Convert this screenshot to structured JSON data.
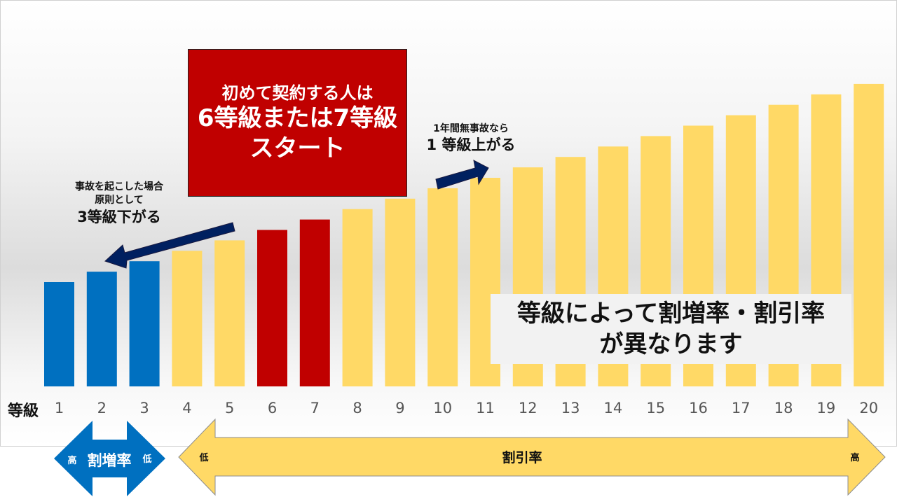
{
  "chart_data": {
    "type": "bar",
    "categories": [
      "1",
      "2",
      "3",
      "4",
      "5",
      "6",
      "7",
      "8",
      "9",
      "10",
      "11",
      "12",
      "13",
      "14",
      "15",
      "16",
      "17",
      "18",
      "19",
      "20"
    ],
    "values": [
      10,
      11,
      12,
      13,
      14,
      15,
      16,
      17,
      18,
      19,
      20,
      21,
      22,
      23,
      24,
      25,
      26,
      27,
      28,
      29
    ],
    "xlabel": "等級",
    "bar_colors": [
      "#0070c0",
      "#0070c0",
      "#0070c0",
      "#ffd966",
      "#ffd966",
      "#c00000",
      "#c00000",
      "#ffd966",
      "#ffd966",
      "#ffd966",
      "#ffd966",
      "#ffd966",
      "#ffd966",
      "#ffd966",
      "#ffd966",
      "#ffd966",
      "#ffd966",
      "#ffd966",
      "#ffd966",
      "#ffd966"
    ],
    "grid": false
  },
  "colors": {
    "increase": "#0070c0",
    "discount": "#ffd966",
    "start": "#c00000",
    "arrow": "#002060"
  },
  "start_box": {
    "line1": "初めて契約する人は",
    "line2": "6等級または7等級",
    "line3": "スタート"
  },
  "accident_note": {
    "line1": "事故を起こした場合",
    "line2": "原則として",
    "line3": "3等級下がる"
  },
  "no_accident_note": {
    "line1": "1年間無事故なら",
    "line2": "1 等級上がる"
  },
  "summary": {
    "line1": "等級によって割増率・割引率",
    "line2": "が異なります"
  },
  "surcharge_arrow": {
    "label": "割増率",
    "left": "高",
    "right": "低"
  },
  "discount_arrow": {
    "label": "割引率",
    "left": "低",
    "right": "高"
  }
}
